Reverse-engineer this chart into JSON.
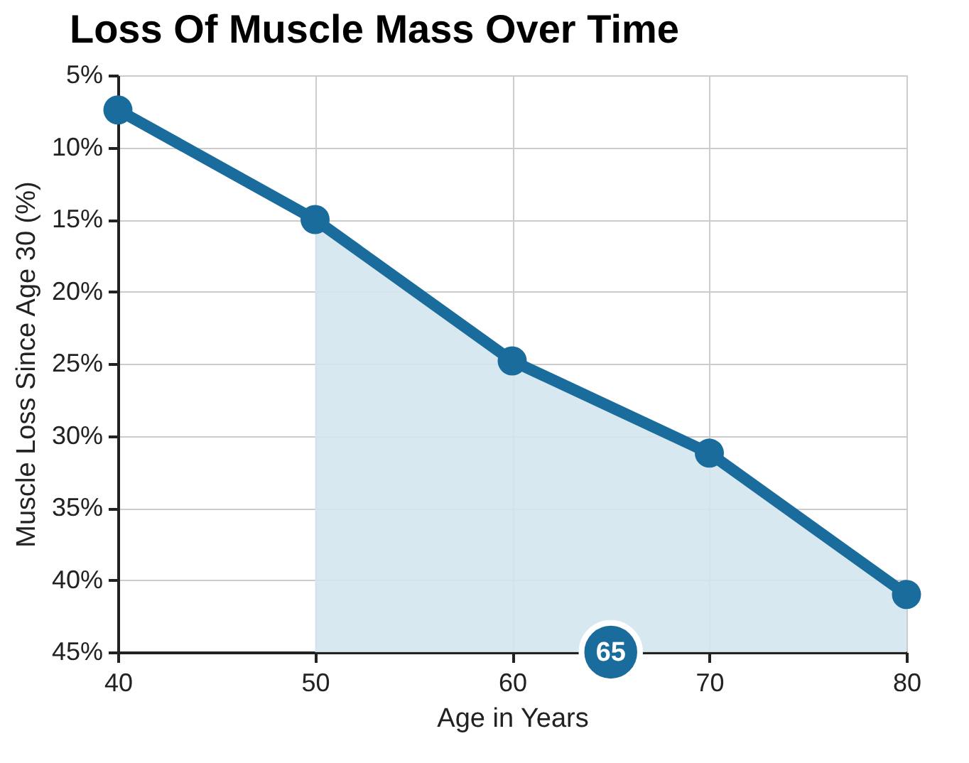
{
  "chart_data": {
    "type": "line",
    "title": "Loss Of Muscle Mass Over Time",
    "xlabel": "Age in Years",
    "ylabel": "Muscle Loss Since Age 30 (%)",
    "x": [
      40,
      50,
      60,
      70,
      80
    ],
    "series": [
      {
        "type": "line",
        "color": "#1a6c9c",
        "values": [
          7.4,
          15,
          24.8,
          31.2,
          41
        ]
      }
    ],
    "xlim": [
      40,
      80
    ],
    "xticks": [
      40,
      50,
      60,
      70,
      80
    ],
    "ylim": [
      45,
      5
    ],
    "yticks": [
      {
        "value": 5,
        "label": "5%"
      },
      {
        "value": 10,
        "label": "10%"
      },
      {
        "value": 15,
        "label": "15%"
      },
      {
        "value": 20,
        "label": "20%"
      },
      {
        "value": 25,
        "label": "25%"
      },
      {
        "value": 30,
        "label": "30%"
      },
      {
        "value": 35,
        "label": "35%"
      },
      {
        "value": 40,
        "label": "40%"
      },
      {
        "value": 45,
        "label": "45%"
      }
    ],
    "annotations": [
      {
        "text": "65",
        "x": 65,
        "y": 45
      }
    ],
    "grid": true,
    "marker": "circle",
    "line_style": "solid"
  }
}
